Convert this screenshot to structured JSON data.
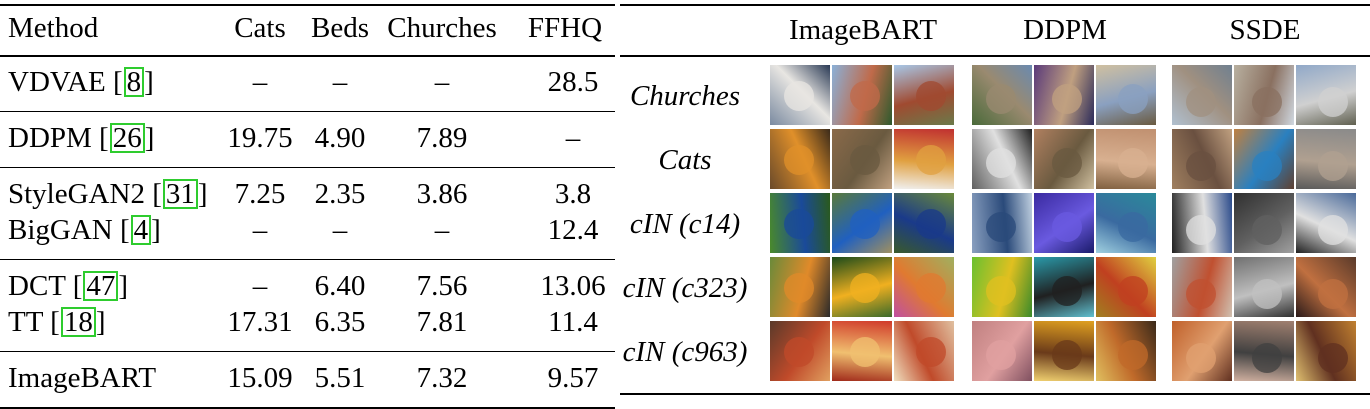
{
  "table": {
    "headers": [
      "Method",
      "Cats",
      "Beds",
      "Churches",
      "FFHQ"
    ],
    "groups": [
      {
        "rows": [
          {
            "method": "VDVAE",
            "cite": "8",
            "cats": "–",
            "beds": "–",
            "churches": "–",
            "ffhq": "28.5"
          }
        ]
      },
      {
        "rows": [
          {
            "method": "DDPM",
            "cite": "26",
            "cats": "19.75",
            "beds": "4.90",
            "churches": "7.89",
            "ffhq": "–"
          }
        ]
      },
      {
        "rows": [
          {
            "method": "StyleGAN2",
            "cite": "31",
            "cats": "7.25",
            "beds": "2.35",
            "churches": "3.86",
            "ffhq": "3.8"
          },
          {
            "method": "BigGAN",
            "cite": "4",
            "cats": "–",
            "beds": "–",
            "churches": "–",
            "ffhq": "12.4"
          }
        ]
      },
      {
        "rows": [
          {
            "method": "DCT",
            "cite": "47",
            "cats": "–",
            "beds": "6.40",
            "churches": "7.56",
            "ffhq": "13.06"
          },
          {
            "method": "TT",
            "cite": "18",
            "cats": "17.31",
            "beds": "6.35",
            "churches": "7.81",
            "ffhq": "11.4"
          }
        ]
      },
      {
        "rows": [
          {
            "method": "ImageBART",
            "cite": "",
            "cats": "15.09",
            "beds": "5.51",
            "churches": "7.32",
            "ffhq": "9.57"
          }
        ]
      }
    ]
  },
  "samples": {
    "columns": [
      "ImageBART",
      "DDPM",
      "SSDE"
    ],
    "rows": [
      "Churches",
      "Cats",
      "cIN (c14)",
      "cIN (c323)",
      "cIN (c963)"
    ],
    "palette": {
      "Churches": [
        [
          "#7a8aa0",
          "#e8e6e2",
          "#2a3a55"
        ],
        [
          "#8ab0d8",
          "#c06a4a",
          "#2d5a2d"
        ],
        [
          "#a8c8e8",
          "#a04a30",
          "#6a7a4a"
        ],
        [
          "#4a6a3a",
          "#9a8a70",
          "#6a8ab0"
        ],
        [
          "#5a3a7a",
          "#c0a080",
          "#2a2a5a"
        ],
        [
          "#d0c0a0",
          "#8aa0c0",
          "#6a5a40"
        ],
        [
          "#b0c0d0",
          "#a09080",
          "#708090"
        ],
        [
          "#b8b0a0",
          "#8a7060",
          "#d0d8e0"
        ],
        [
          "#90a8c8",
          "#d0d0d0",
          "#606050"
        ]
      ],
      "Cats": [
        [
          "#6a4a2a",
          "#e0902a",
          "#3a2a1a"
        ],
        [
          "#8a6a4a",
          "#6a5a40",
          "#c0a080"
        ],
        [
          "#c03030",
          "#e0a040",
          "#f0f0f0"
        ],
        [
          "#606060",
          "#e0e0e0",
          "#202020"
        ],
        [
          "#b08060",
          "#6a5a40",
          "#d0c0a0"
        ],
        [
          "#c09070",
          "#d8b090",
          "#806040"
        ],
        [
          "#a08060",
          "#6a5040",
          "#c0a080"
        ],
        [
          "#c08040",
          "#2a80c0",
          "#604030"
        ],
        [
          "#8a8a8a",
          "#b0a090",
          "#5a5a5a"
        ]
      ],
      "cIN (c14)": [
        [
          "#4a8a2a",
          "#1a4a9a",
          "#2a5a1a"
        ],
        [
          "#5a7a3a",
          "#2060c0",
          "#a09060"
        ],
        [
          "#6a8a3a",
          "#1a3a8a",
          "#3a5a2a"
        ],
        [
          "#8aa0c0",
          "#2a4a7a",
          "#c0d0e0"
        ],
        [
          "#3a2aa0",
          "#6a5ae0",
          "#1a1a6a"
        ],
        [
          "#2a8a9a",
          "#3a6aa0",
          "#a0d0e0"
        ],
        [
          "#202020",
          "#e0e0e0",
          "#2a4a8a"
        ],
        [
          "#303030",
          "#606060",
          "#a0a0a0"
        ],
        [
          "#4a6a9a",
          "#e0e0e0",
          "#202020"
        ]
      ],
      "cIN (c323)": [
        [
          "#6a8a3a",
          "#e08a2a",
          "#2a2a2a"
        ],
        [
          "#1a4a1a",
          "#f0b020",
          "#3a6a2a"
        ],
        [
          "#a0b060",
          "#e07a30",
          "#c050a0"
        ],
        [
          "#6ac030",
          "#e0c020",
          "#3a8a2a"
        ],
        [
          "#2a9aaa",
          "#202020",
          "#60c0d0"
        ],
        [
          "#e0d040",
          "#c04020",
          "#a08020"
        ],
        [
          "#a0a0a0",
          "#c05030",
          "#d0c0b0"
        ],
        [
          "#707070",
          "#c0c0c0",
          "#303030"
        ],
        [
          "#5a3a2a",
          "#c07040",
          "#2a1a1a"
        ]
      ],
      "cIN (c963)": [
        [
          "#5a3a2a",
          "#c04a2a",
          "#e0a060"
        ],
        [
          "#d03a2a",
          "#f0c070",
          "#a02a1a"
        ],
        [
          "#e0c0a0",
          "#c04a2a",
          "#f0e0c0"
        ],
        [
          "#c08080",
          "#e0a0a0",
          "#805060"
        ],
        [
          "#e0a020",
          "#6a3a1a",
          "#f0d070"
        ],
        [
          "#3a2a1a",
          "#c06a2a",
          "#e0c060"
        ],
        [
          "#c0602a",
          "#e0a070",
          "#603020"
        ],
        [
          "#a08070",
          "#404040",
          "#d0b0a0"
        ],
        [
          "#c08030",
          "#603020",
          "#e0c070"
        ]
      ]
    }
  }
}
